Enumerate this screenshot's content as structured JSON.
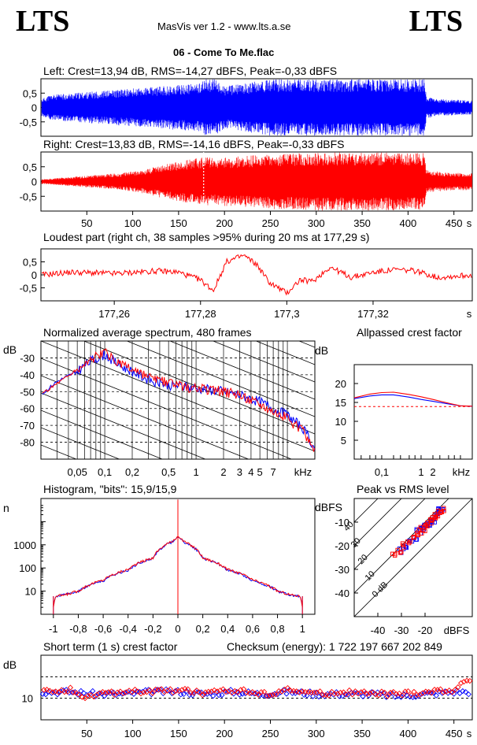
{
  "header": {
    "logo_left": "LTS",
    "logo_right": "LTS",
    "app": "MasVis ver 1.2 - www.lts.a.se",
    "file": "06 - Come To Me.flac"
  },
  "colors": {
    "left": "#0000ff",
    "right": "#ff0000",
    "axis": "#000000",
    "background": "#ffffff"
  },
  "chart_data": [
    {
      "id": "left_waveform",
      "type": "area",
      "title": "Left: Crest=13,94 dB, RMS=-14,27 dBFS, Peak=-0,33 dBFS",
      "channel": "left",
      "xlim": [
        0,
        470
      ],
      "ylim": [
        -1,
        1
      ],
      "yticks": [
        0.5,
        0,
        -0.5
      ],
      "ytick_labels": [
        "0,5",
        "0",
        "-0,5"
      ],
      "envelope": {
        "t": [
          0,
          10,
          30,
          50,
          70,
          90,
          110,
          130,
          150,
          170,
          180,
          190,
          200,
          210,
          230,
          250,
          300,
          350,
          400,
          418,
          420,
          430,
          450,
          470
        ],
        "amp": [
          0.3,
          0.45,
          0.5,
          0.55,
          0.6,
          0.65,
          0.7,
          0.75,
          0.8,
          0.85,
          1.0,
          1.0,
          0.75,
          0.8,
          0.9,
          1.0,
          1.0,
          1.0,
          1.0,
          1.0,
          0.4,
          0.3,
          0.28,
          0.25
        ]
      }
    },
    {
      "id": "right_waveform",
      "type": "area",
      "title": "Right: Crest=13,83 dB, RMS=-14,16 dBFS, Peak=-0,33 dBFS",
      "channel": "right",
      "xlim": [
        0,
        470
      ],
      "ylim": [
        -1,
        1
      ],
      "yticks": [
        0.5,
        0,
        -0.5
      ],
      "ytick_labels": [
        "0,5",
        "0",
        "-0,5"
      ],
      "xticks": [
        50,
        100,
        150,
        200,
        250,
        300,
        350,
        400,
        450
      ],
      "xtick_labels": [
        "50",
        "100",
        "150",
        "200",
        "250",
        "300",
        "350",
        "400",
        "450"
      ],
      "xunit": "s",
      "marker_t": 177.29,
      "envelope": {
        "t": [
          0,
          10,
          30,
          50,
          70,
          90,
          110,
          130,
          150,
          170,
          180,
          190,
          200,
          210,
          230,
          250,
          300,
          350,
          400,
          418,
          420,
          430,
          450,
          470
        ],
        "amp": [
          0.08,
          0.1,
          0.15,
          0.2,
          0.25,
          0.3,
          0.4,
          0.55,
          0.7,
          0.8,
          0.85,
          0.8,
          0.85,
          0.85,
          0.9,
          0.95,
          1.0,
          1.0,
          1.0,
          1.0,
          0.4,
          0.35,
          0.3,
          0.3
        ]
      }
    },
    {
      "id": "loudest_part",
      "type": "line",
      "title": "Loudest part (right ch, 38 samples >95% during 20 ms at 177,29 s)",
      "xlim": [
        177.243,
        177.343
      ],
      "ylim": [
        -1,
        1
      ],
      "yticks": [
        0.5,
        0,
        -0.5
      ],
      "ytick_labels": [
        "0,5",
        "0",
        "-0,5"
      ],
      "xticks": [
        177.26,
        177.28,
        177.3,
        177.32
      ],
      "xtick_labels": [
        "177,26",
        "177,28",
        "177,3",
        "177,32"
      ],
      "xunit": "s",
      "series": [
        {
          "channel": "right",
          "x": [
            177.243,
            177.25,
            177.26,
            177.27,
            177.275,
            177.28,
            177.283,
            177.286,
            177.29,
            177.293,
            177.296,
            177.3,
            177.303,
            177.306,
            177.31,
            177.315,
            177.32,
            177.325,
            177.33,
            177.335,
            177.343
          ],
          "y": [
            0.0,
            0.1,
            0.05,
            0.15,
            0.1,
            -0.2,
            -0.6,
            0.5,
            0.75,
            0.4,
            -0.3,
            -0.7,
            -0.2,
            -0.25,
            0.3,
            -0.1,
            0.1,
            0.2,
            0.15,
            -0.1,
            0.0
          ]
        }
      ]
    },
    {
      "id": "spectrum",
      "type": "line",
      "title": "Normalized average spectrum, 480 frames",
      "ylabel": "dB",
      "xunit": "kHz",
      "xscale": "log",
      "xlim": [
        0.02,
        20
      ],
      "ylim": [
        -90,
        -20
      ],
      "yticks": [
        -30,
        -40,
        -50,
        -60,
        -70,
        -80
      ],
      "ytick_labels": [
        "-30",
        "-40",
        "-50",
        "-60",
        "-70",
        "-80"
      ],
      "xticks": [
        0.05,
        0.1,
        0.2,
        0.5,
        1,
        2,
        3,
        4,
        5,
        7
      ],
      "xtick_labels": [
        "0,05",
        "0,1",
        "0,2",
        "0,5",
        "1",
        "2",
        "3",
        "4",
        "5",
        "7"
      ],
      "series": [
        {
          "channel": "left",
          "x": [
            0.02,
            0.03,
            0.05,
            0.07,
            0.1,
            0.15,
            0.2,
            0.3,
            0.5,
            0.7,
            1,
            1.5,
            2,
            3,
            5,
            7,
            10,
            15,
            20
          ],
          "y": [
            -52,
            -44,
            -38,
            -32,
            -28,
            -35,
            -38,
            -43,
            -46,
            -47,
            -48,
            -49,
            -50,
            -52,
            -56,
            -60,
            -64,
            -72,
            -84
          ]
        },
        {
          "channel": "right",
          "x": [
            0.02,
            0.03,
            0.05,
            0.07,
            0.1,
            0.15,
            0.2,
            0.3,
            0.5,
            0.7,
            1,
            1.5,
            2,
            3,
            5,
            7,
            10,
            15,
            20
          ],
          "y": [
            -52,
            -45,
            -37,
            -31,
            -27,
            -34,
            -37,
            -42,
            -45,
            -47,
            -48,
            -49,
            -50,
            -52,
            -57,
            -61,
            -66,
            -74,
            -85
          ]
        }
      ]
    },
    {
      "id": "allpassed_crest",
      "type": "line",
      "title": "Allpassed crest factor",
      "ylabel": "dB",
      "xunit": "kHz",
      "xscale": "log",
      "xlim": [
        0.02,
        20
      ],
      "ylim": [
        0,
        25
      ],
      "yticks": [
        20,
        15,
        10,
        5
      ],
      "ytick_labels": [
        "20",
        "15",
        "10",
        "5"
      ],
      "xticks": [
        0.1,
        1,
        2
      ],
      "xtick_labels": [
        "0,1",
        "1",
        "2"
      ],
      "reference_db": 13.9,
      "series": [
        {
          "channel": "left",
          "x": [
            0.02,
            0.05,
            0.1,
            0.2,
            0.5,
            1,
            2,
            5,
            10,
            20
          ],
          "y": [
            16,
            16.7,
            17,
            17,
            16.4,
            15.8,
            15.3,
            14.6,
            14.1,
            14
          ]
        },
        {
          "channel": "right",
          "x": [
            0.02,
            0.05,
            0.1,
            0.2,
            0.5,
            1,
            2,
            5,
            10,
            20
          ],
          "y": [
            16.2,
            17.2,
            17.6,
            17.7,
            17.1,
            16.5,
            15.8,
            14.8,
            14.1,
            14
          ]
        }
      ]
    },
    {
      "id": "histogram",
      "type": "line",
      "title": "Histogram, \"bits\": 15,9/15,9",
      "ylabel": "n",
      "yscale": "log",
      "xlim": [
        -1.1,
        1.1
      ],
      "ylim": [
        1,
        100000
      ],
      "yticks": [
        1000,
        100,
        10
      ],
      "ytick_labels": [
        "1000",
        "100",
        "10"
      ],
      "xticks": [
        -1,
        -0.8,
        -0.6,
        -0.4,
        -0.2,
        0,
        0.2,
        0.4,
        0.6,
        0.8,
        1
      ],
      "xtick_labels": [
        "-1",
        "-0,8",
        "-0,6",
        "-0,4",
        "-0,2",
        "0",
        "0,2",
        "0,4",
        "0,6",
        "0,8",
        "1"
      ],
      "series": [
        {
          "channel": "left",
          "x": [
            -1.0,
            -0.98,
            -0.9,
            -0.8,
            -0.6,
            -0.4,
            -0.2,
            -0.05,
            0,
            0.05,
            0.2,
            0.4,
            0.6,
            0.8,
            0.9,
            0.98,
            1.0
          ],
          "y": [
            2,
            6,
            7,
            10,
            28,
            80,
            260,
            1300,
            2200,
            1300,
            260,
            80,
            28,
            10,
            7,
            6,
            2
          ]
        },
        {
          "channel": "right",
          "x": [
            -1.0,
            -0.98,
            -0.9,
            -0.8,
            -0.6,
            -0.4,
            -0.2,
            -0.05,
            0,
            0.05,
            0.2,
            0.4,
            0.6,
            0.8,
            0.9,
            0.98,
            1.0
          ],
          "y": [
            2,
            6,
            7,
            10,
            30,
            85,
            270,
            1350,
            2300,
            1350,
            270,
            85,
            30,
            10,
            7,
            6,
            2
          ]
        }
      ]
    },
    {
      "id": "peak_vs_rms",
      "type": "scatter",
      "title": "Peak vs RMS level",
      "ylabel": "dBFS",
      "xlabel": "dBFS",
      "xlim": [
        -50,
        0
      ],
      "ylim": [
        -50,
        0
      ],
      "yticks": [
        -10,
        -20,
        -30,
        -40
      ],
      "ytick_labels": [
        "-10",
        "-20",
        "-30",
        "-40"
      ],
      "xticks": [
        -40,
        -30,
        -20
      ],
      "xtick_labels": [
        "-40",
        "-30",
        "-20"
      ],
      "crest_lines_db": [
        0,
        10,
        20,
        30,
        40
      ],
      "crest_line_labels": [
        "0 dB",
        "10",
        "20",
        "30",
        "40"
      ],
      "series": [
        {
          "channel": "left",
          "x": [
            -30,
            -28,
            -26,
            -24,
            -23,
            -21,
            -20,
            -19,
            -18,
            -17,
            -16,
            -15,
            -14,
            -13
          ],
          "y": [
            -22,
            -20,
            -18,
            -17,
            -14,
            -13,
            -12,
            -11,
            -10,
            -9,
            -8,
            -6,
            -5,
            -4
          ]
        },
        {
          "channel": "right",
          "x": [
            -33,
            -31,
            -29,
            -27,
            -25,
            -23,
            -22,
            -21,
            -20,
            -19,
            -18,
            -17,
            -16,
            -15,
            -14,
            -13
          ],
          "y": [
            -24,
            -22,
            -20,
            -19,
            -17,
            -15,
            -14,
            -13,
            -12,
            -11,
            -10,
            -9,
            -8,
            -7,
            -6,
            -5
          ]
        }
      ]
    },
    {
      "id": "short_term_crest",
      "type": "scatter",
      "title": "Short term (1 s) crest factor",
      "checksum": "Checksum (energy):  1 722 197 667 202 849",
      "ylabel": "dB",
      "xlim": [
        0,
        470
      ],
      "ylim": [
        0,
        30
      ],
      "yticks": [
        10
      ],
      "ytick_labels": [
        "10"
      ],
      "xticks": [
        50,
        100,
        150,
        200,
        250,
        300,
        350,
        400,
        450
      ],
      "xtick_labels": [
        "50",
        "100",
        "150",
        "200",
        "250",
        "300",
        "350",
        "400",
        "450"
      ],
      "xunit": "s",
      "reference_lines_db": [
        10,
        20
      ],
      "series": [
        {
          "channel": "left",
          "x": [
            5,
            30,
            60,
            90,
            120,
            150,
            180,
            210,
            240,
            270,
            300,
            330,
            360,
            390,
            420,
            450,
            470
          ],
          "y": [
            13,
            13,
            12,
            12,
            13,
            13,
            12,
            13,
            12,
            13,
            12,
            12,
            12,
            11,
            12,
            13,
            13
          ]
        },
        {
          "channel": "right",
          "x": [
            5,
            30,
            45,
            60,
            90,
            120,
            150,
            180,
            210,
            240,
            270,
            300,
            330,
            360,
            390,
            420,
            450,
            470
          ],
          "y": [
            13,
            14,
            9,
            12,
            13,
            13,
            14,
            12,
            14,
            12,
            14,
            12,
            13,
            12,
            12,
            13,
            14,
            20
          ]
        }
      ]
    }
  ]
}
